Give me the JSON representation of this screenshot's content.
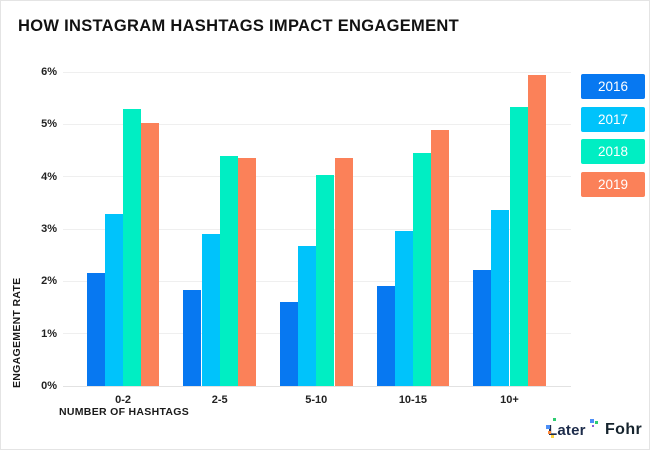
{
  "chart_data": {
    "type": "bar",
    "title": "HOW INSTAGRAM HASHTAGS IMPACT ENGAGEMENT",
    "xlabel": "NUMBER OF HASHTAGS",
    "ylabel": "ENGAGEMENT RATE",
    "categories": [
      "0-2",
      "2-5",
      "5-10",
      "10-15",
      "10+"
    ],
    "series": [
      {
        "name": "2016",
        "color": "#0778F1",
        "values": [
          2.16,
          1.83,
          1.6,
          1.91,
          2.22
        ]
      },
      {
        "name": "2017",
        "color": "#00C3FB",
        "values": [
          3.28,
          2.9,
          2.68,
          2.96,
          3.36
        ]
      },
      {
        "name": "2018",
        "color": "#00EEC3",
        "values": [
          5.3,
          4.4,
          4.03,
          4.46,
          5.34
        ]
      },
      {
        "name": "2019",
        "color": "#FB8159",
        "values": [
          5.03,
          4.35,
          4.36,
          4.9,
          5.95
        ]
      }
    ],
    "ylim": [
      0,
      6
    ],
    "yticks": [
      "0%",
      "1%",
      "2%",
      "3%",
      "4%",
      "5%",
      "6%"
    ],
    "grid": true,
    "legend_position": "right"
  },
  "footer": {
    "later_label": "Later",
    "fohr_label": "Fohr"
  }
}
